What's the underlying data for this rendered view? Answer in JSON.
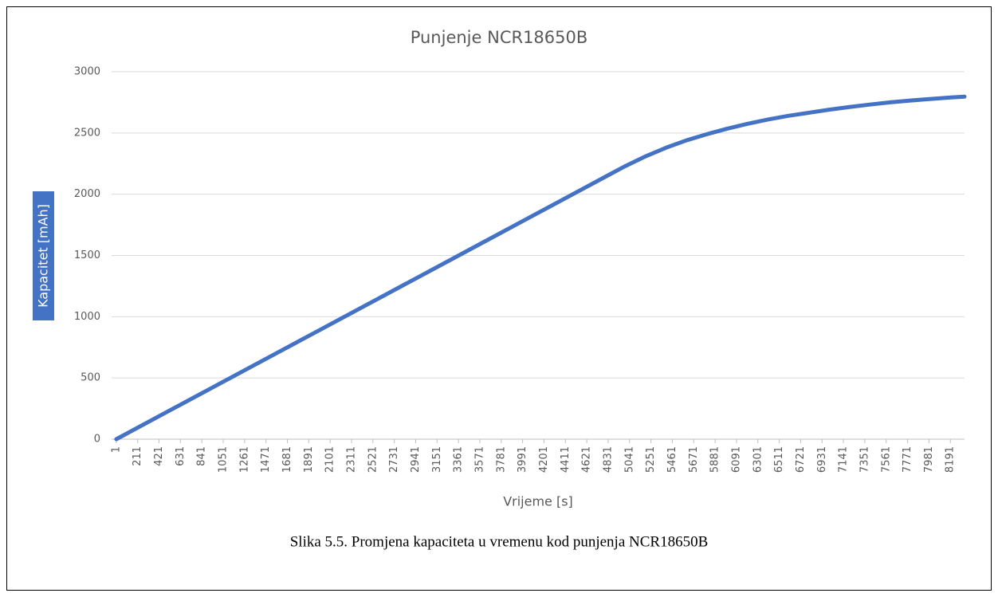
{
  "chart_data": {
    "type": "line",
    "title": "Punjenje NCR18650B",
    "x_label": "Vrijeme [s]",
    "y_label": "Kapacitet [mAh]",
    "caption": "Slika 5.5. Promjena kapaciteta u vremenu kod punjenja NCR18650B",
    "x": [
      1,
      500,
      1000,
      1500,
      2000,
      2500,
      3000,
      3500,
      4000,
      4500,
      4800,
      5000,
      5200,
      5400,
      5600,
      5800,
      6000,
      6200,
      6400,
      6600,
      6800,
      7000,
      7200,
      7400,
      7600,
      7800,
      8000,
      8200,
      8330
    ],
    "series": [
      {
        "name": "Kapacitet",
        "color": "#4472c4",
        "values": [
          0,
          223,
          446,
          669,
          892,
          1115,
          1338,
          1561,
          1784,
          2007,
          2141,
          2230,
          2310,
          2380,
          2440,
          2490,
          2535,
          2575,
          2610,
          2640,
          2665,
          2690,
          2712,
          2732,
          2750,
          2765,
          2778,
          2790,
          2797
        ]
      }
    ],
    "xlim": [
      -45,
      8330
    ],
    "xticks": [
      1,
      211,
      421,
      631,
      841,
      1051,
      1261,
      1471,
      1681,
      1891,
      2101,
      2311,
      2521,
      2731,
      2941,
      3151,
      3361,
      3571,
      3781,
      3991,
      4201,
      4411,
      4621,
      4831,
      5041,
      5251,
      5461,
      5671,
      5881,
      6091,
      6301,
      6511,
      6721,
      6931,
      7141,
      7351,
      7561,
      7771,
      7981,
      8191
    ],
    "ylim": [
      0,
      3000
    ],
    "yticks": [
      0,
      500,
      1000,
      1500,
      2000,
      2500,
      3000
    ],
    "grid": true
  }
}
